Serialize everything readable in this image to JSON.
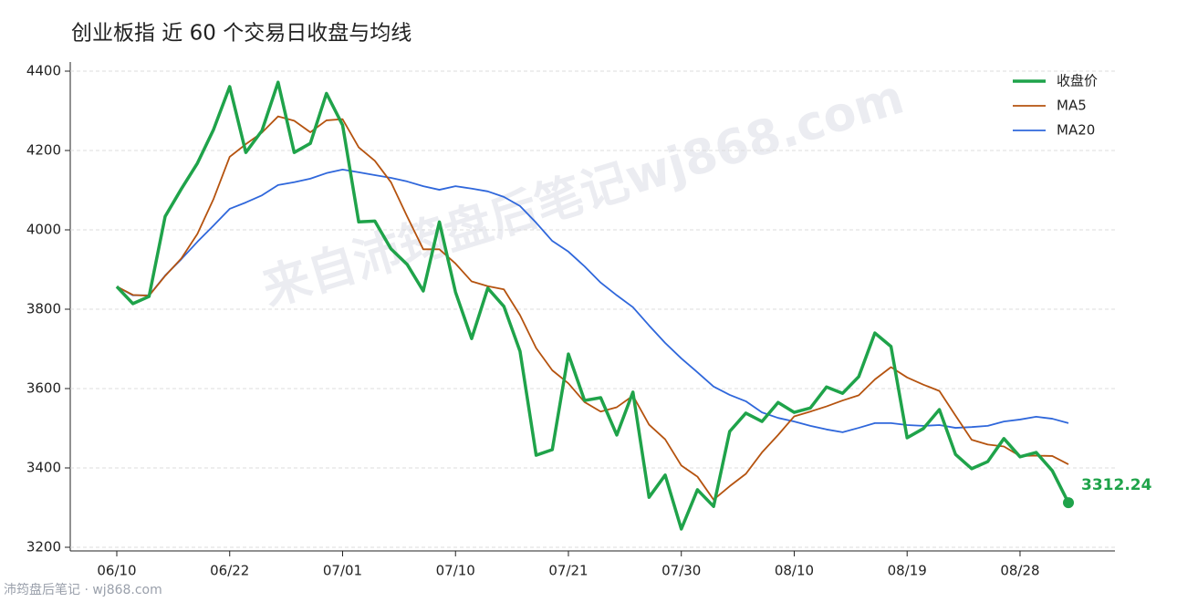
{
  "chart_data": {
    "type": "line",
    "title": "创业板指 近 60 个交易日收盘与均线",
    "watermark": "来自沛筠盘后笔记wj868.com",
    "source": "沛筠盘后笔记 · wj868.com",
    "categories": [
      "06/10",
      null,
      null,
      null,
      null,
      null,
      null,
      "06/22",
      null,
      null,
      null,
      null,
      null,
      null,
      "07/01",
      null,
      null,
      null,
      null,
      null,
      null,
      "07/10",
      null,
      null,
      null,
      null,
      null,
      null,
      "07/21",
      null,
      null,
      null,
      null,
      null,
      null,
      "07/30",
      null,
      null,
      null,
      null,
      null,
      null,
      "08/10",
      null,
      null,
      null,
      null,
      null,
      null,
      "08/19",
      null,
      null,
      null,
      null,
      null,
      null,
      "08/28",
      null,
      null,
      null
    ],
    "series": [
      {
        "name": "收盘价",
        "color": "#1fa34a",
        "width": 3.5,
        "values": [
          3857,
          3814,
          3832,
          4034,
          4103,
          4168,
          4253,
          4361,
          4195,
          4250,
          4372,
          4195,
          4218,
          4344,
          4264,
          4020,
          4022,
          3952,
          3913,
          3846,
          4020,
          3843,
          3726,
          3853,
          3807,
          3694,
          3432,
          3446,
          3687,
          3570,
          3577,
          3483,
          3591,
          3326,
          3382,
          3246,
          3345,
          3303,
          3492,
          3538,
          3517,
          3565,
          3540,
          3551,
          3604,
          3588,
          3630,
          3740,
          3706,
          3476,
          3499,
          3547,
          3434,
          3398,
          3416,
          3474,
          3428,
          3439,
          3393,
          3312.24
        ]
      },
      {
        "name": "MA5",
        "color": "#b5530f",
        "width": 1.8,
        "values": [
          3857,
          3836,
          3834,
          3884,
          3928,
          3990,
          4078,
          4184,
          4216,
          4245,
          4286,
          4275,
          4246,
          4276,
          4279,
          4208,
          4174,
          4120,
          4034,
          3951,
          3951,
          3915,
          3870,
          3858,
          3850,
          3785,
          3702,
          3646,
          3613,
          3566,
          3542,
          3553,
          3582,
          3509,
          3472,
          3406,
          3378,
          3320,
          3354,
          3385,
          3439,
          3483,
          3530,
          3542,
          3555,
          3570,
          3583,
          3623,
          3654,
          3628,
          3610,
          3594,
          3532,
          3471,
          3459,
          3454,
          3430,
          3431,
          3430,
          3409
        ]
      },
      {
        "name": "MA20",
        "color": "#2f67db",
        "width": 1.8,
        "values": [
          3857,
          3835,
          3835,
          3885,
          3926,
          3970,
          4011,
          4053,
          4069,
          4087,
          4113,
          4120,
          4129,
          4143,
          4152,
          4145,
          4138,
          4131,
          4122,
          4110,
          4101,
          4110,
          4104,
          4097,
          4083,
          4060,
          4018,
          3972,
          3945,
          3908,
          3867,
          3835,
          3805,
          3759,
          3715,
          3676,
          3641,
          3605,
          3584,
          3568,
          3540,
          3526,
          3517,
          3506,
          3497,
          3490,
          3501,
          3513,
          3513,
          3508,
          3506,
          3508,
          3501,
          3503,
          3506,
          3517,
          3522,
          3529,
          3524,
          3513
        ]
      }
    ],
    "ylim": [
      3200,
      4400
    ],
    "yticks": [
      3200,
      3400,
      3600,
      3800,
      4000,
      4200,
      4400
    ],
    "grid": true,
    "legend": "upper right"
  }
}
